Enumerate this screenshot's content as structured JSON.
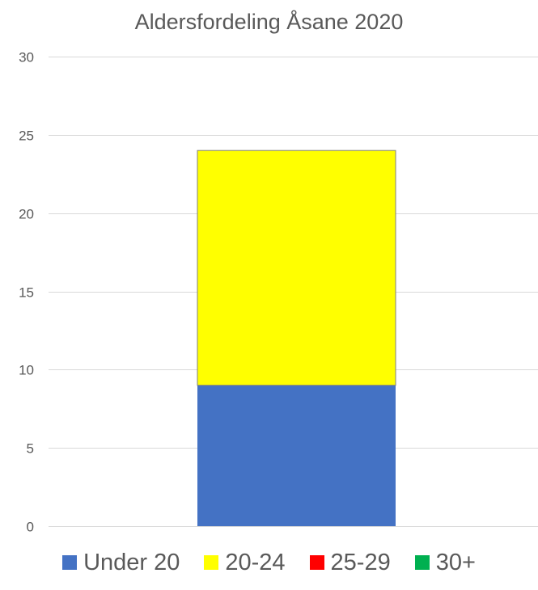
{
  "chart_data": {
    "type": "bar",
    "stacked": true,
    "title": "Aldersfordeling Åsane 2020",
    "xlabel": "",
    "ylabel": "",
    "categories": [
      ""
    ],
    "ylim": [
      0,
      30
    ],
    "yticks": [
      0,
      5,
      10,
      15,
      20,
      25,
      30
    ],
    "grid": true,
    "legend_position": "bottom",
    "series": [
      {
        "name": "Under 20",
        "values": [
          9
        ],
        "color": "#4472C4"
      },
      {
        "name": "20-24",
        "values": [
          15
        ],
        "color": "#FFFF00"
      },
      {
        "name": "25-29",
        "values": [
          0
        ],
        "color": "#FF0000"
      },
      {
        "name": "30+",
        "values": [
          0
        ],
        "color": "#00B050"
      }
    ]
  }
}
